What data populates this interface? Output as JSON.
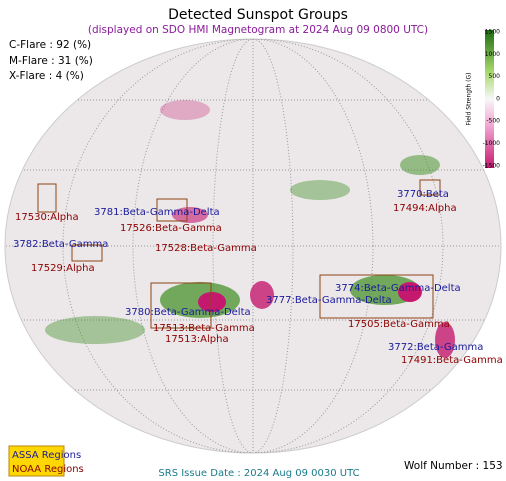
{
  "header": {
    "title": "Detected Sunspot Groups",
    "subtitle": "(displayed on SDO HMI Magnetogram at 2024 Aug 09 0800 UTC)"
  },
  "flares": [
    "C-Flare : 92 (%)",
    "M-Flare : 31 (%)",
    "X-Flare :  4 (%)"
  ],
  "colorbar": {
    "label": "Field Strength (G)",
    "ticks": [
      1500,
      1000,
      500,
      0,
      -500,
      -1000,
      -1500
    ]
  },
  "assa_regions": [
    "3781:Beta-Gamma-Delta",
    "3782:Beta-Gamma",
    "3780:Beta-Gamma-Delta",
    "3777:Beta-Gamma-Delta",
    "3774:Beta-Gamma-Delta",
    "3772:Beta-Gamma",
    "3770:Beta"
  ],
  "noaa_regions": [
    "17530:Alpha",
    "17526:Beta-Gamma",
    "17528:Beta-Gamma",
    "17529:Alpha",
    "17513:Beta-Gamma",
    "17513:Alpha",
    "17505:Beta-Gamma",
    "17491:Beta-Gamma",
    "17494:Alpha"
  ],
  "legend": [
    "ASSA Regions",
    "NOAA Regions"
  ],
  "footer": {
    "srs_date": "SRS Issue Date : 2024 Aug 09 0030 UTC",
    "wolf_number": "Wolf Number : 153"
  }
}
